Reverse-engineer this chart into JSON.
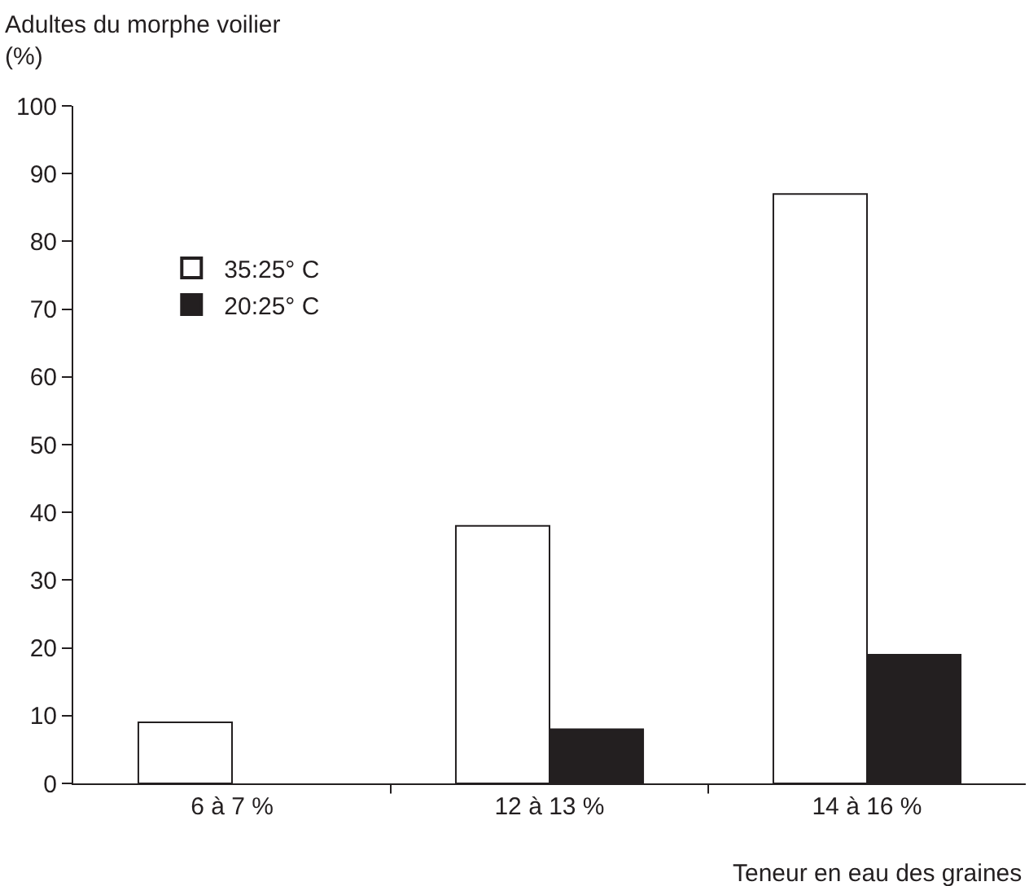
{
  "chart_data": {
    "type": "bar",
    "ylabel": "Adultes du morphe voilier\n(%)",
    "xlabel": "Teneur en eau des graines",
    "categories": [
      "6 à 7 %",
      "12 à 13 %",
      "14 à 16 %"
    ],
    "series": [
      {
        "name": "35:25° C",
        "color": "#ffffff",
        "values": [
          9,
          38,
          87
        ]
      },
      {
        "name": "20:25° C",
        "color": "#231f20",
        "values": [
          null,
          8,
          19
        ]
      }
    ],
    "ylim": [
      0,
      100
    ],
    "yticks": [
      0,
      10,
      20,
      30,
      40,
      50,
      60,
      70,
      80,
      90,
      100
    ],
    "legend": "top left"
  }
}
